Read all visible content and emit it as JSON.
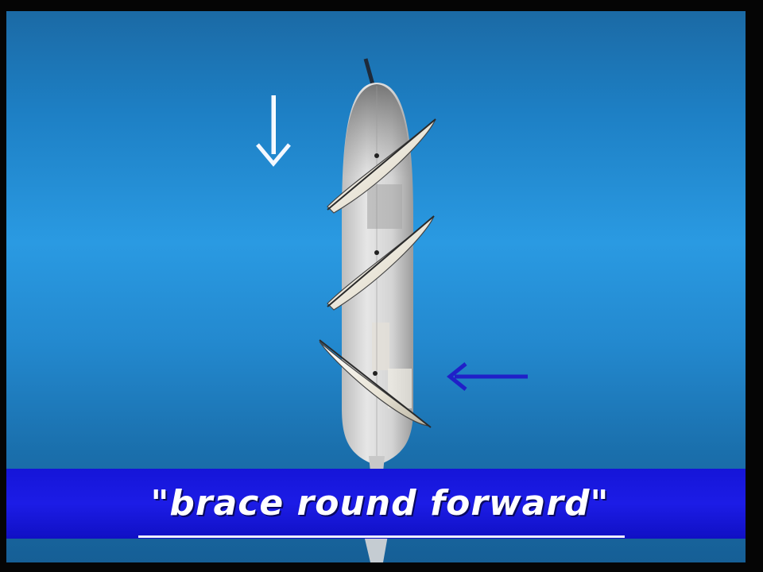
{
  "caption": {
    "text": "\"brace round forward\""
  },
  "colors": {
    "sky_top": "#1b6aa5",
    "sky_mid": "#2a9ae2",
    "hull": "#dcdcdc",
    "sail": "#e8e4d8",
    "arrow_white": "#f4f8ff",
    "arrow_blue": "#2020c8",
    "caption_band": "#1c1ce6",
    "caption_text": "#ffffff"
  },
  "icons": {
    "down_arrow": "arrow-down-icon",
    "left_arrow": "arrow-left-icon"
  }
}
